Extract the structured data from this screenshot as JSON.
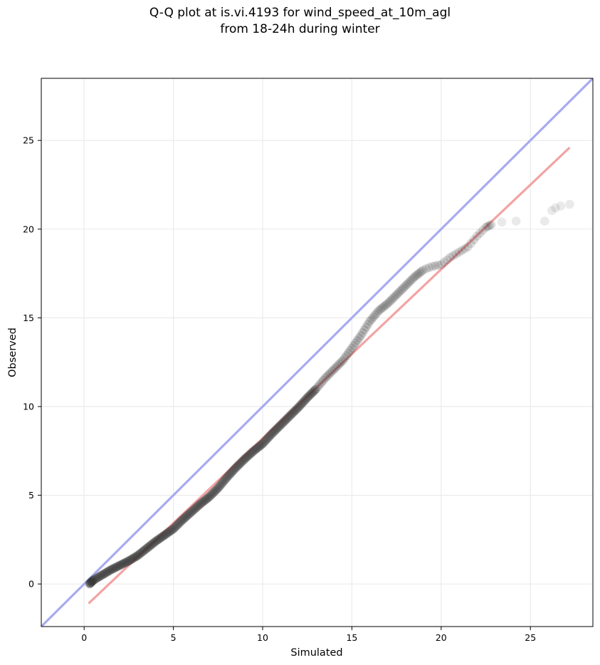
{
  "chart_data": {
    "type": "scatter",
    "title_line1": "Q-Q plot at is.vi.4193 for wind_speed_at_10m_agl",
    "title_line2": "from 18-24h during winter",
    "xlabel": "Simulated",
    "ylabel": "Observed",
    "xlim": [
      -2.4,
      28.5
    ],
    "ylim": [
      -2.4,
      28.5
    ],
    "xticks": [
      0,
      5,
      10,
      15,
      20,
      25
    ],
    "yticks": [
      0,
      5,
      10,
      15,
      20,
      25
    ],
    "grid": true,
    "reference_line": {
      "color": "#a8aaf0",
      "x": [
        -2.4,
        28.5
      ],
      "y": [
        -2.4,
        28.5
      ]
    },
    "fit_line": {
      "color": "#f3a3a3",
      "x": [
        0.25,
        27.2
      ],
      "y": [
        -1.1,
        24.6
      ]
    },
    "point_color": "#333333",
    "quantile_curve": [
      [
        0.3,
        0.0
      ],
      [
        0.5,
        0.2
      ],
      [
        1.0,
        0.5
      ],
      [
        1.5,
        0.8
      ],
      [
        2.0,
        1.05
      ],
      [
        2.5,
        1.3
      ],
      [
        3.0,
        1.6
      ],
      [
        3.5,
        2.0
      ],
      [
        4.0,
        2.4
      ],
      [
        4.5,
        2.75
      ],
      [
        5.0,
        3.1
      ],
      [
        5.5,
        3.6
      ],
      [
        6.0,
        4.05
      ],
      [
        6.5,
        4.5
      ],
      [
        7.0,
        4.9
      ],
      [
        7.5,
        5.4
      ],
      [
        8.0,
        6.0
      ],
      [
        8.5,
        6.55
      ],
      [
        9.0,
        7.05
      ],
      [
        9.5,
        7.5
      ],
      [
        10.0,
        7.9
      ],
      [
        10.5,
        8.45
      ],
      [
        11.0,
        8.95
      ],
      [
        11.5,
        9.45
      ],
      [
        12.0,
        9.95
      ],
      [
        12.5,
        10.5
      ],
      [
        13.0,
        11.0
      ],
      [
        13.5,
        11.6
      ],
      [
        14.0,
        12.1
      ],
      [
        14.5,
        12.6
      ],
      [
        15.0,
        13.3
      ],
      [
        15.5,
        14.0
      ],
      [
        16.0,
        14.8
      ],
      [
        16.5,
        15.4
      ],
      [
        17.0,
        15.8
      ],
      [
        17.5,
        16.3
      ],
      [
        18.0,
        16.8
      ],
      [
        18.5,
        17.3
      ],
      [
        19.0,
        17.7
      ],
      [
        19.5,
        17.9
      ],
      [
        20.0,
        18.0
      ],
      [
        20.5,
        18.4
      ],
      [
        21.0,
        18.7
      ],
      [
        21.5,
        19.0
      ],
      [
        22.0,
        19.6
      ],
      [
        22.5,
        20.1
      ],
      [
        22.8,
        20.25
      ]
    ],
    "outlier_points": [
      [
        23.4,
        20.4
      ],
      [
        24.2,
        20.45
      ],
      [
        25.8,
        20.45
      ],
      [
        26.2,
        21.05
      ],
      [
        26.4,
        21.2
      ],
      [
        26.7,
        21.3
      ],
      [
        27.2,
        21.4
      ]
    ]
  }
}
